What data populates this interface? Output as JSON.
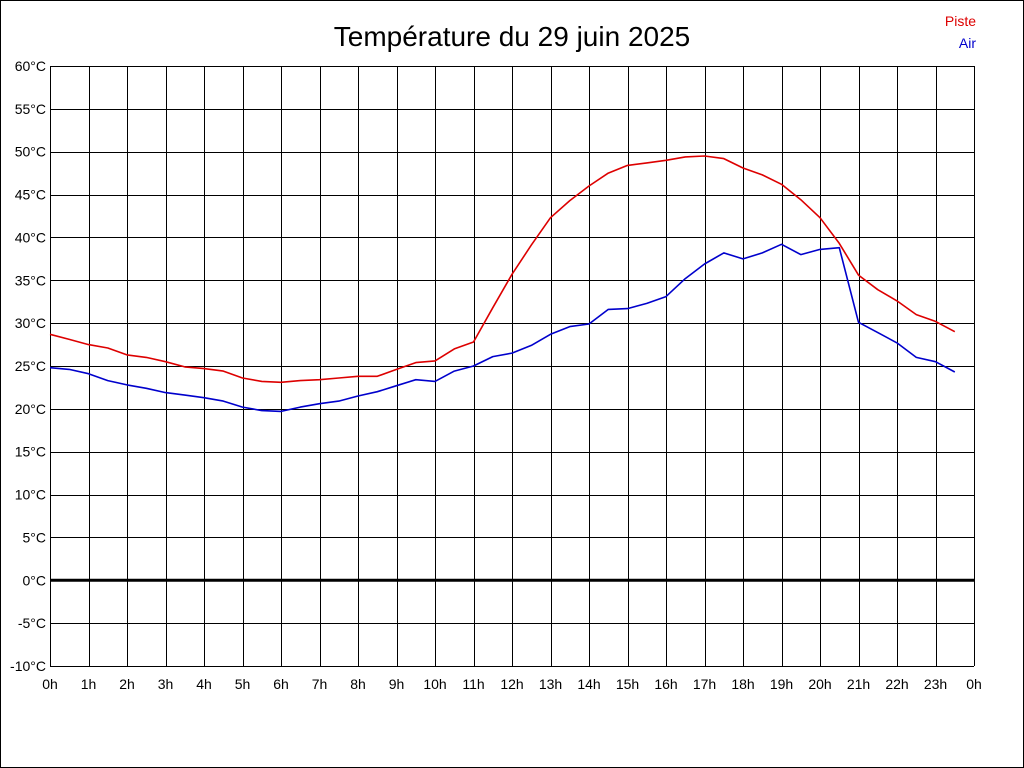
{
  "chart_data": {
    "type": "line",
    "title": "Température du 29 juin 2025",
    "ylim": [
      -10,
      60
    ],
    "y_ticks": [
      "60°C",
      "55°C",
      "50°C",
      "45°C",
      "40°C",
      "35°C",
      "30°C",
      "25°C",
      "20°C",
      "15°C",
      "10°C",
      "5°C",
      "0°C",
      "-5°C",
      "-10°C"
    ],
    "y_tick_values": [
      60,
      55,
      50,
      45,
      40,
      35,
      30,
      25,
      20,
      15,
      10,
      5,
      0,
      -5,
      -10
    ],
    "x_ticks": [
      "0h",
      "1h",
      "2h",
      "3h",
      "4h",
      "5h",
      "6h",
      "7h",
      "8h",
      "9h",
      "10h",
      "11h",
      "12h",
      "13h",
      "14h",
      "15h",
      "16h",
      "17h",
      "18h",
      "19h",
      "20h",
      "21h",
      "22h",
      "23h",
      "0h"
    ],
    "x_range_hours": [
      0,
      24
    ],
    "grid": true,
    "zero_line": true,
    "legend_position": "top-right",
    "series": [
      {
        "name": "Piste",
        "color": "#dd0000",
        "x": [
          0,
          0.5,
          1,
          1.5,
          2,
          2.5,
          3,
          3.5,
          4,
          4.5,
          5,
          5.5,
          6,
          6.5,
          7,
          7.5,
          8,
          8.5,
          9,
          9.5,
          10,
          10.5,
          11,
          11.5,
          12,
          12.5,
          13,
          13.5,
          14,
          14.5,
          15,
          15.5,
          16,
          16.5,
          17,
          17.5,
          18,
          18.5,
          19,
          19.5,
          20,
          20.5,
          21,
          21.5,
          22,
          22.5,
          23,
          23.5
        ],
        "values": [
          28.7,
          28.1,
          27.5,
          27.1,
          26.3,
          26.0,
          25.5,
          24.9,
          24.7,
          24.4,
          23.6,
          23.2,
          23.1,
          23.3,
          23.4,
          23.6,
          23.8,
          23.8,
          24.6,
          25.4,
          25.6,
          27.0,
          27.8,
          31.8,
          35.7,
          39.1,
          42.3,
          44.3,
          46.0,
          47.5,
          48.4,
          48.7,
          49.0,
          49.4,
          49.5,
          49.2,
          48.1,
          47.3,
          46.2,
          44.4,
          42.3,
          39.3,
          35.6,
          33.9,
          32.6,
          31.0,
          30.2,
          29.0
        ]
      },
      {
        "name": "Air",
        "color": "#0000cc",
        "x": [
          0,
          0.5,
          1,
          1.5,
          2,
          2.5,
          3,
          3.5,
          4,
          4.5,
          5,
          5.5,
          6,
          6.5,
          7,
          7.5,
          8,
          8.5,
          9,
          9.5,
          10,
          10.5,
          11,
          11.5,
          12,
          12.5,
          13,
          13.5,
          14,
          14.5,
          15,
          15.5,
          16,
          16.5,
          17,
          17.5,
          18,
          18.5,
          19,
          19.5,
          20,
          20.5,
          21,
          21.5,
          22,
          22.5,
          23,
          23.5
        ],
        "values": [
          24.8,
          24.6,
          24.1,
          23.3,
          22.8,
          22.4,
          21.9,
          21.6,
          21.3,
          20.9,
          20.2,
          19.8,
          19.7,
          20.2,
          20.6,
          20.9,
          21.5,
          22.0,
          22.7,
          23.4,
          23.2,
          24.4,
          25.0,
          26.1,
          26.5,
          27.4,
          28.7,
          29.6,
          29.9,
          31.6,
          31.7,
          32.3,
          33.1,
          35.2,
          36.9,
          38.2,
          37.5,
          38.2,
          39.2,
          38.0,
          38.6,
          38.8,
          30.1,
          28.9,
          27.7,
          26.0,
          25.5,
          24.3
        ]
      }
    ]
  }
}
